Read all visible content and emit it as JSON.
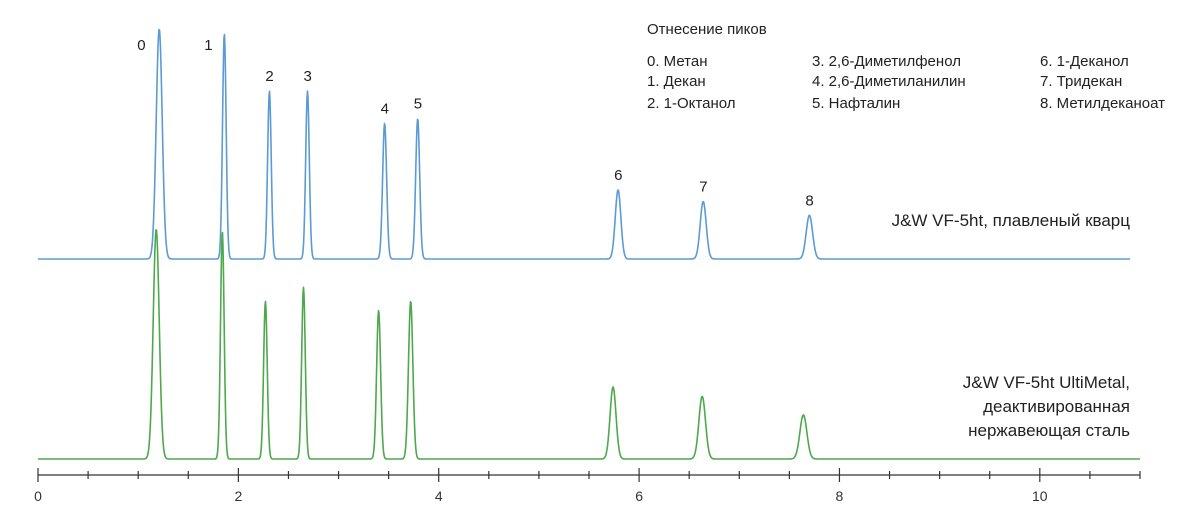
{
  "chart_data": {
    "type": "line",
    "title": "",
    "xlabel": "",
    "ylabel": "",
    "xlim": [
      0,
      11
    ],
    "x_ticks": [
      0,
      2,
      4,
      6,
      8,
      10
    ],
    "x_tick_labels": [
      "0",
      "2",
      "4",
      "6",
      "8",
      "10"
    ],
    "minor_tick_step": 0.5,
    "grid": false,
    "series": [
      {
        "name": "J&W VF-5ht, плавленый кварц",
        "label_lines": [
          "J&W VF-5ht, плавленый кварц"
        ],
        "color": "#5b9bd5",
        "peaks": [
          {
            "id": "0",
            "x": 1.21,
            "height": 1.0,
            "width": 0.03
          },
          {
            "id": "1",
            "x": 1.86,
            "height": 0.98,
            "width": 0.018
          },
          {
            "id": "2",
            "x": 2.31,
            "height": 0.73,
            "width": 0.018
          },
          {
            "id": "3",
            "x": 2.69,
            "height": 0.73,
            "width": 0.018
          },
          {
            "id": "4",
            "x": 3.46,
            "height": 0.59,
            "width": 0.02
          },
          {
            "id": "5",
            "x": 3.79,
            "height": 0.61,
            "width": 0.02
          },
          {
            "id": "6",
            "x": 5.79,
            "height": 0.3,
            "width": 0.028
          },
          {
            "id": "7",
            "x": 6.64,
            "height": 0.25,
            "width": 0.03
          },
          {
            "id": "8",
            "x": 7.7,
            "height": 0.19,
            "width": 0.032
          }
        ]
      },
      {
        "name": "J&W VF-5ht UltiMetal, деактивированная нержавеющая сталь",
        "label_lines": [
          "J&W VF-5ht UltiMetal,",
          "деактивированная",
          "нержавеющая сталь"
        ],
        "color": "#4ea84e",
        "peaks": [
          {
            "id": "0",
            "x": 1.18,
            "height": 0.99,
            "width": 0.03
          },
          {
            "id": "1",
            "x": 1.84,
            "height": 0.98,
            "width": 0.018
          },
          {
            "id": "2",
            "x": 2.27,
            "height": 0.68,
            "width": 0.018
          },
          {
            "id": "3",
            "x": 2.65,
            "height": 0.74,
            "width": 0.018
          },
          {
            "id": "4",
            "x": 3.4,
            "height": 0.64,
            "width": 0.02
          },
          {
            "id": "5",
            "x": 3.72,
            "height": 0.68,
            "width": 0.022
          },
          {
            "id": "6",
            "x": 5.74,
            "height": 0.31,
            "width": 0.03
          },
          {
            "id": "7",
            "x": 6.63,
            "height": 0.27,
            "width": 0.033
          },
          {
            "id": "8",
            "x": 7.64,
            "height": 0.19,
            "width": 0.035
          }
        ]
      }
    ],
    "peak_legend": {
      "title": "Отнесение пиков",
      "columns": [
        [
          "0.  Метан",
          "1.  Декан",
          "2.  1-Октанол"
        ],
        [
          "3.  2,6-Диметилфенол",
          "4.  2,6-Диметиланилин",
          "5.  Нафталин"
        ],
        [
          "6.  1-Деканол",
          "7.  Тридекан",
          "8.  Метилдеканоат"
        ]
      ]
    }
  }
}
